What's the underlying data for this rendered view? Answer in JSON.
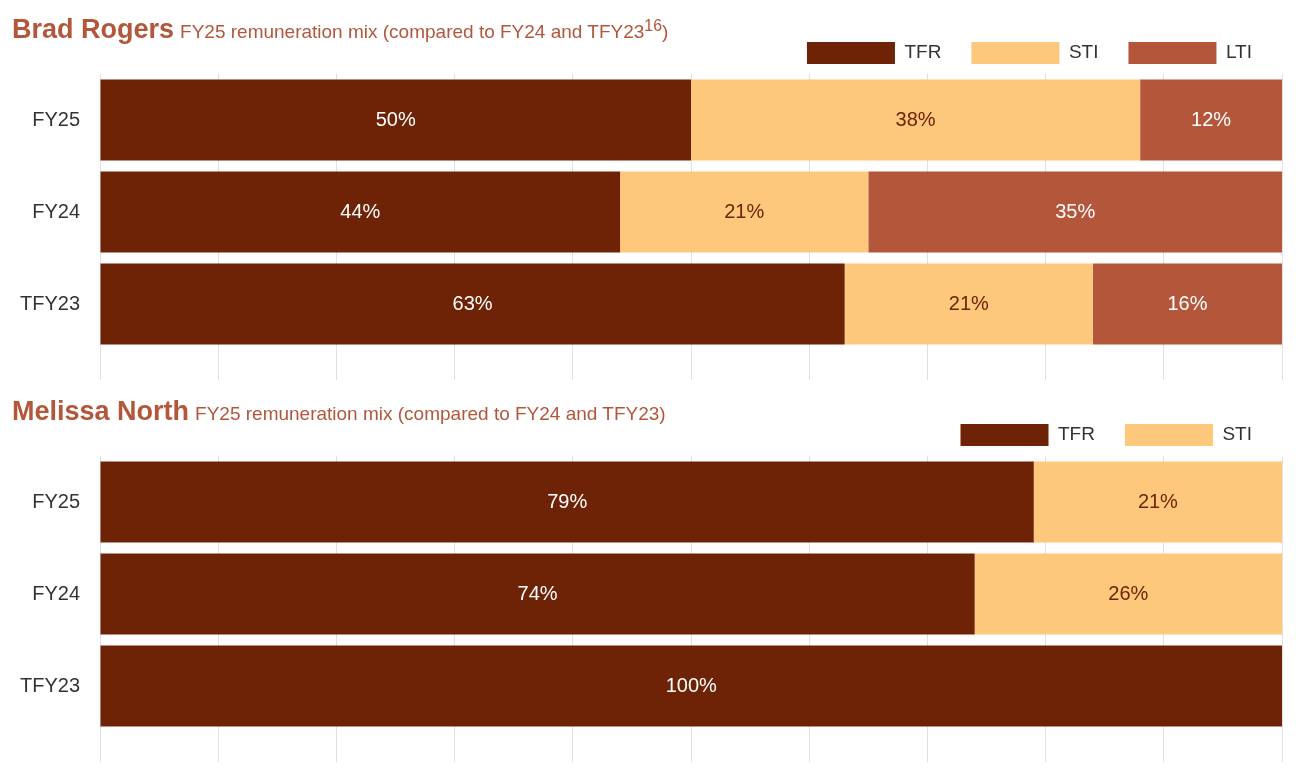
{
  "chart_data": [
    {
      "type": "bar",
      "orientation": "horizontal",
      "stacked": true,
      "title": "Brad Rogers",
      "subtitle": "FY25 remuneration mix (compared to FY24 and TFY23$^{16}$)",
      "categories": [
        "FY25",
        "FY24",
        "TFY23"
      ],
      "xlim": [
        0,
        100
      ],
      "xticks": [
        {
          "value": 0,
          "label": null
        },
        {
          "value": 10,
          "label": null
        },
        {
          "value": 20,
          "label": null
        },
        {
          "value": 30,
          "label": null
        },
        {
          "value": 40,
          "label": null
        },
        {
          "value": 50,
          "label": null
        },
        {
          "value": 60,
          "label": null
        },
        {
          "value": 70,
          "label": null
        },
        {
          "value": 80,
          "label": null
        },
        {
          "value": 90,
          "label": null
        },
        {
          "value": 100,
          "label": null
        }
      ],
      "tick_labels": "y",
      "grid": "x",
      "legend": "top right",
      "series": [
        {
          "name": "TFR",
          "color": "#6e2306",
          "values": [
            50,
            44,
            63
          ],
          "value_labels": [
            "50%",
            "44%",
            "63%"
          ]
        },
        {
          "name": "STI",
          "color": "#fec87c",
          "values": [
            38,
            21,
            21
          ],
          "value_labels": [
            "38%",
            "21%",
            "21%"
          ]
        },
        {
          "name": "LTI",
          "color": "#b3563a",
          "values": [
            12,
            35,
            16
          ],
          "value_labels": [
            "12%",
            "35%",
            "16%"
          ]
        }
      ]
    },
    {
      "type": "bar",
      "orientation": "horizontal",
      "stacked": true,
      "title": "Melissa North",
      "subtitle": "FY25 remuneration mix (compared to FY24 and TFY23)",
      "categories": [
        "FY25",
        "FY24",
        "TFY23"
      ],
      "xlim": [
        0,
        100
      ],
      "xticks": [
        {
          "value": 0,
          "label": null
        },
        {
          "value": 10,
          "label": null
        },
        {
          "value": 20,
          "label": null
        },
        {
          "value": 30,
          "label": null
        },
        {
          "value": 40,
          "label": null
        },
        {
          "value": 50,
          "label": null
        },
        {
          "value": 60,
          "label": null
        },
        {
          "value": 70,
          "label": null
        },
        {
          "value": 80,
          "label": null
        },
        {
          "value": 90,
          "label": null
        },
        {
          "value": 100,
          "label": null
        }
      ],
      "tick_labels": "y",
      "grid": "x",
      "legend": "top right",
      "series": [
        {
          "name": "TFR",
          "color": "#6e2306",
          "values": [
            79,
            74,
            100
          ],
          "value_labels": [
            "79%",
            "74%",
            "100%"
          ]
        },
        {
          "name": "STI",
          "color": "#fec87c",
          "values": [
            21,
            26,
            null
          ],
          "value_labels": [
            "21%",
            "26%",
            null
          ]
        }
      ]
    }
  ]
}
